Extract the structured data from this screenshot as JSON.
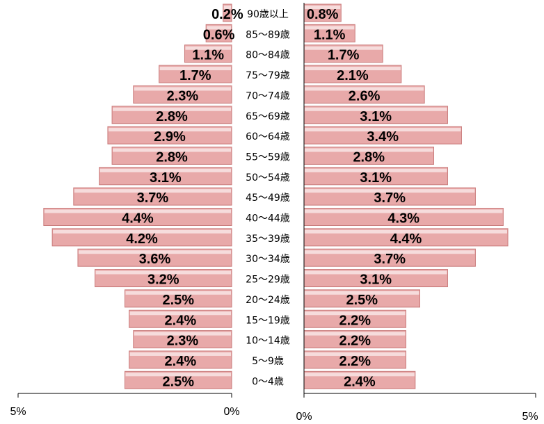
{
  "chart_data": {
    "type": "bar",
    "orientation": "population-pyramid",
    "colors": {
      "bar": "#e8a9a9",
      "bar_edge": "#c97b7b",
      "axis": "#000000"
    },
    "categories": [
      "0～4歳",
      "5～9歳",
      "10～14歳",
      "15～19歳",
      "20～24歳",
      "25～29歳",
      "30～34歳",
      "35～39歳",
      "40～44歳",
      "45～49歳",
      "50～54歳",
      "55～59歳",
      "60～64歳",
      "65～69歳",
      "70～74歳",
      "75～79歳",
      "80～84歳",
      "85～89歳",
      "90歳以上"
    ],
    "series": [
      {
        "side": "left",
        "values": [
          2.5,
          2.4,
          2.3,
          2.4,
          2.5,
          3.2,
          3.6,
          4.2,
          4.4,
          3.7,
          3.1,
          2.8,
          2.9,
          2.8,
          2.3,
          1.7,
          1.1,
          0.6,
          0.2
        ],
        "labels": [
          "2.5%",
          "2.4%",
          "2.3%",
          "2.4%",
          "2.5%",
          "3.2%",
          "3.6%",
          "4.2%",
          "4.4%",
          "3.7%",
          "3.1%",
          "2.8%",
          "2.9%",
          "2.8%",
          "2.3%",
          "1.7%",
          "1.1%",
          "0.6%",
          "0.2%"
        ]
      },
      {
        "side": "right",
        "values": [
          2.4,
          2.2,
          2.2,
          2.2,
          2.5,
          3.1,
          3.7,
          4.4,
          4.3,
          3.7,
          3.1,
          2.8,
          3.4,
          3.1,
          2.6,
          2.1,
          1.7,
          1.1,
          0.8
        ],
        "labels": [
          "2.4%",
          "2.2%",
          "2.2%",
          "2.2%",
          "2.5%",
          "3.1%",
          "3.7%",
          "4.4%",
          "4.3%",
          "3.7%",
          "3.1%",
          "2.8%",
          "3.4%",
          "3.1%",
          "2.6%",
          "2.1%",
          "1.7%",
          "1.1%",
          "0.8%"
        ]
      }
    ],
    "left_axis": {
      "range": [
        0,
        5
      ],
      "tick_labels": [
        "5%",
        "0%"
      ]
    },
    "right_axis": {
      "range": [
        0,
        5
      ],
      "tick_labels": [
        "0%",
        "5%"
      ]
    }
  }
}
